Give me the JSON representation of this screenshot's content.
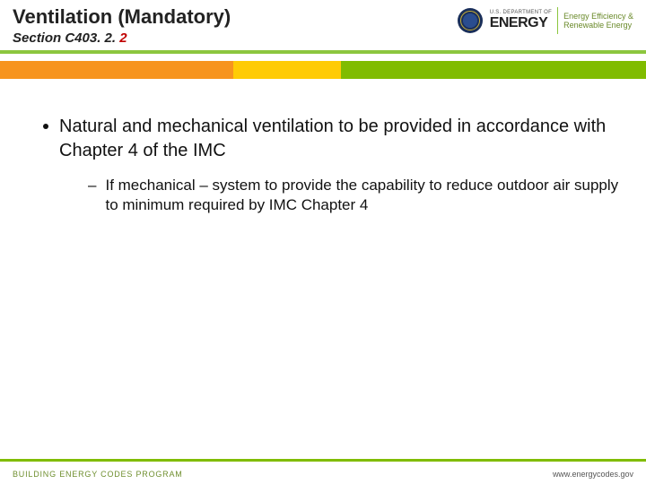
{
  "header": {
    "title": "Ventilation (Mandatory)",
    "section_prefix": "Section C403. 2. ",
    "section_suffix_red": "2"
  },
  "logo": {
    "dept_line": "U.S. DEPARTMENT OF",
    "energy_word": "ENERGY",
    "eere_line1": "Energy Efficiency &",
    "eere_line2": "Renewable Energy"
  },
  "colors": {
    "green": "#80bc00",
    "green_underline": "#8cc63f",
    "orange": "#f7941e",
    "gold": "#ffcb05"
  },
  "content": {
    "bullet1": "Natural and mechanical ventilation to be provided in accordance with Chapter 4 of the IMC",
    "sub1": "If mechanical – system to provide the capability to reduce outdoor air supply to minimum required by IMC Chapter 4"
  },
  "footer": {
    "program": "BUILDING ENERGY CODES PROGRAM",
    "url": "www.energycodes.gov"
  }
}
